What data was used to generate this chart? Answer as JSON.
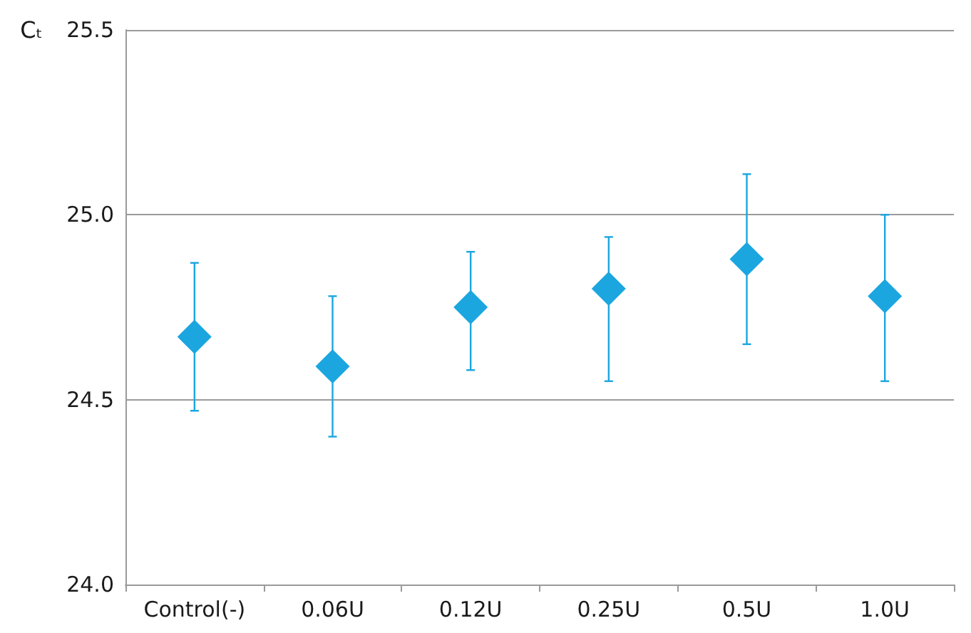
{
  "chart_data": {
    "type": "scatter",
    "ylabel": "Cₜ",
    "categories": [
      "Control(-)",
      "0.06U",
      "0.12U",
      "0.25U",
      "0.5U",
      "1.0U"
    ],
    "values": [
      24.67,
      24.59,
      24.75,
      24.8,
      24.88,
      24.78
    ],
    "errors": [
      [
        24.47,
        24.87
      ],
      [
        24.4,
        24.78
      ],
      [
        24.58,
        24.9
      ],
      [
        24.55,
        24.94
      ],
      [
        24.65,
        25.11
      ],
      [
        24.55,
        25.0
      ]
    ],
    "color": "#1ba6e0",
    "marker": "diamond",
    "ylim": [
      24.0,
      25.5
    ],
    "yticks": [
      {
        "value": 24,
        "label": "24.0"
      },
      {
        "value": 24.5,
        "label": "24.5"
      },
      {
        "value": 25,
        "label": "25.0"
      },
      {
        "value": 25.5,
        "label": "25.5"
      }
    ],
    "grid": "y"
  }
}
